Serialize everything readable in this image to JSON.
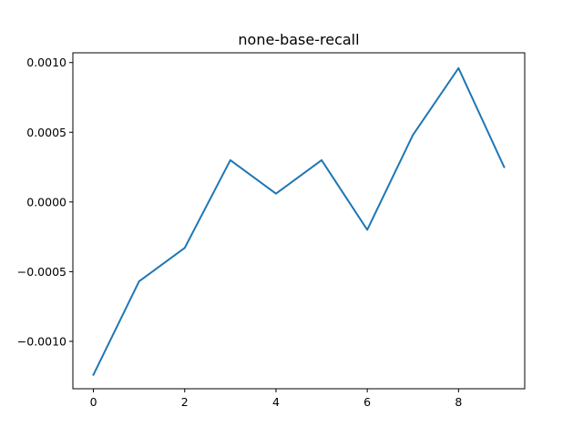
{
  "chart_data": {
    "type": "line",
    "title": "none-base-recall",
    "xlabel": "",
    "ylabel": "",
    "grid": false,
    "xlim": [
      -0.45,
      9.45
    ],
    "ylim": [
      -0.00134,
      0.00107
    ],
    "x_ticks": [
      0,
      2,
      4,
      6,
      8
    ],
    "x_tick_labels": [
      "0",
      "2",
      "4",
      "6",
      "8"
    ],
    "y_ticks": [
      -0.001,
      -0.0005,
      0.0,
      0.0005,
      0.001
    ],
    "y_tick_labels": [
      "−0.0010",
      "−0.0005",
      "0.0000",
      "0.0005",
      "0.0010"
    ],
    "series": [
      {
        "color": "#1f77b4",
        "x": [
          0,
          1,
          2,
          3,
          4,
          5,
          6,
          7,
          8,
          9
        ],
        "y": [
          -0.00124,
          -0.00057,
          -0.00033,
          0.0003,
          6e-05,
          0.0003,
          -0.0002,
          0.00048,
          0.00096,
          0.00025
        ]
      }
    ]
  }
}
